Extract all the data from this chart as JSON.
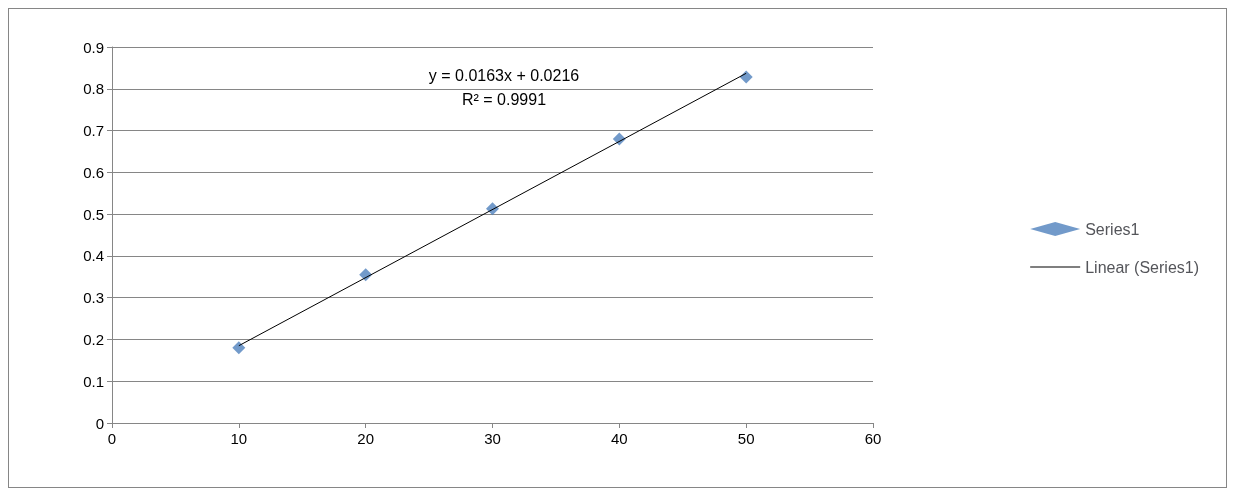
{
  "chart_data": {
    "type": "scatter",
    "series": [
      {
        "name": "Series1",
        "color": "#4f81bd",
        "marker": "diamond",
        "x": [
          10,
          20,
          30,
          40,
          50
        ],
        "values": [
          0.18,
          0.355,
          0.513,
          0.68,
          0.828
        ]
      },
      {
        "name": "Linear (Series1)",
        "type": "line",
        "color": "#000000",
        "marker": "none",
        "line_style": "solid",
        "x": [
          10,
          50
        ],
        "values": [
          0.185,
          0.837
        ]
      }
    ],
    "annotations": [
      "y = 0.0163x + 0.0216",
      "R² = 0.9991"
    ],
    "xlim": [
      0,
      60
    ],
    "xticks": [
      0,
      10,
      20,
      30,
      40,
      50,
      60
    ],
    "ylim": [
      0,
      0.9
    ],
    "yticks": [
      0,
      0.1,
      0.2,
      0.3,
      0.4,
      0.5,
      0.6,
      0.7,
      0.8,
      0.9
    ],
    "grid": "y",
    "legend": "right"
  }
}
